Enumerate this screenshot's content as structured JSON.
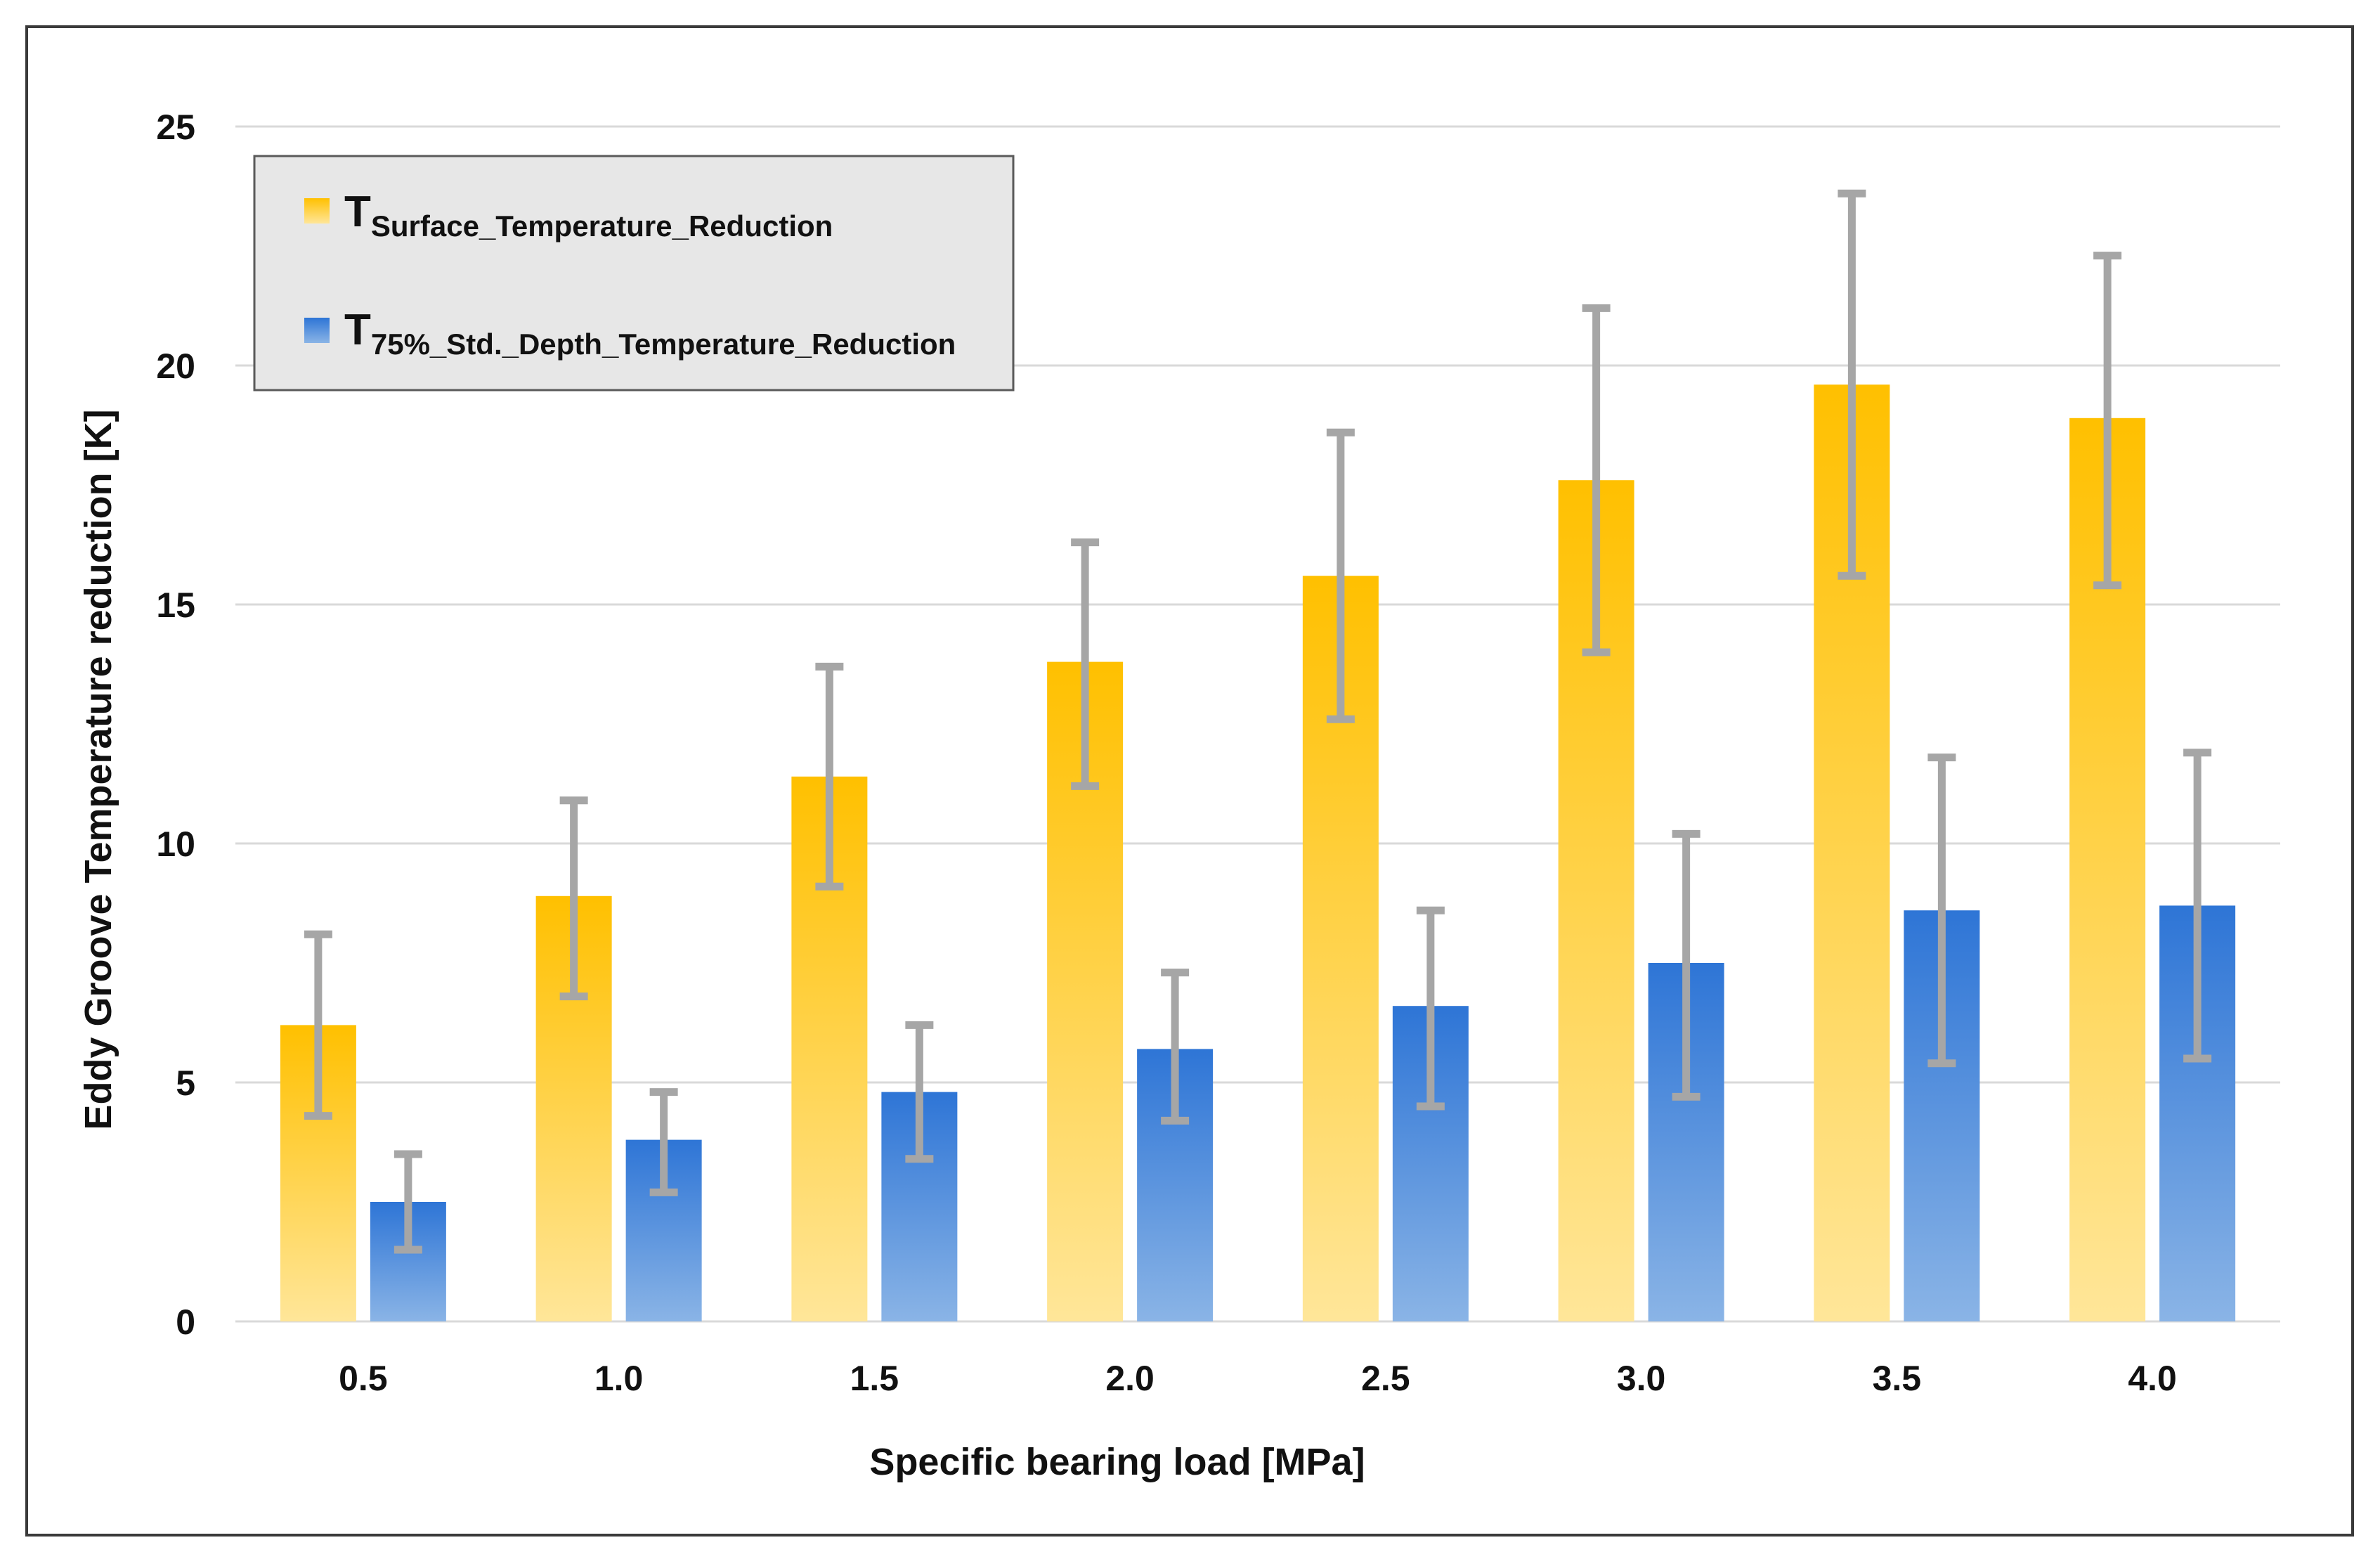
{
  "chart_data": {
    "type": "bar",
    "title": "",
    "xlabel": "Specific bearing load [MPa]",
    "ylabel": "Eddy Groove Temperature reduction [K]",
    "ylim": [
      0,
      25
    ],
    "yticks": [
      0,
      5,
      10,
      15,
      20,
      25
    ],
    "grid": true,
    "legend_position": "top-left",
    "categories": [
      "0.5",
      "1.0",
      "1.5",
      "2.0",
      "2.5",
      "3.0",
      "3.5",
      "4.0"
    ],
    "series": [
      {
        "name": "T_Surface_Temperature_Reduction",
        "legend_main": "T",
        "legend_sub": "Surface_Temperature_Reduction",
        "color_top": "#FFC000",
        "color_bottom": "#FFE699",
        "values": [
          6.2,
          8.9,
          11.4,
          13.8,
          15.6,
          17.6,
          19.6,
          18.9
        ],
        "error_low": [
          4.3,
          6.8,
          9.1,
          11.2,
          12.6,
          14.0,
          15.6,
          15.4
        ],
        "error_high": [
          8.1,
          10.9,
          13.7,
          16.3,
          18.6,
          21.2,
          23.6,
          22.3
        ]
      },
      {
        "name": "T_75%_Std._Depth_Temperature_Reduction",
        "legend_main": "T",
        "legend_sub": "75%_Std._Depth_Temperature_Reduction",
        "color_top": "#2E75D6",
        "color_bottom": "#8AB4E6",
        "values": [
          2.5,
          3.8,
          4.8,
          5.7,
          6.6,
          7.5,
          8.6,
          8.7
        ],
        "error_low": [
          1.5,
          2.7,
          3.4,
          4.2,
          4.5,
          4.7,
          5.4,
          5.5
        ],
        "error_high": [
          3.5,
          4.8,
          6.2,
          7.3,
          8.6,
          10.2,
          11.8,
          11.9
        ]
      }
    ],
    "error_bar_color": "#A6A6A6",
    "grid_color": "#D9D9D9"
  }
}
